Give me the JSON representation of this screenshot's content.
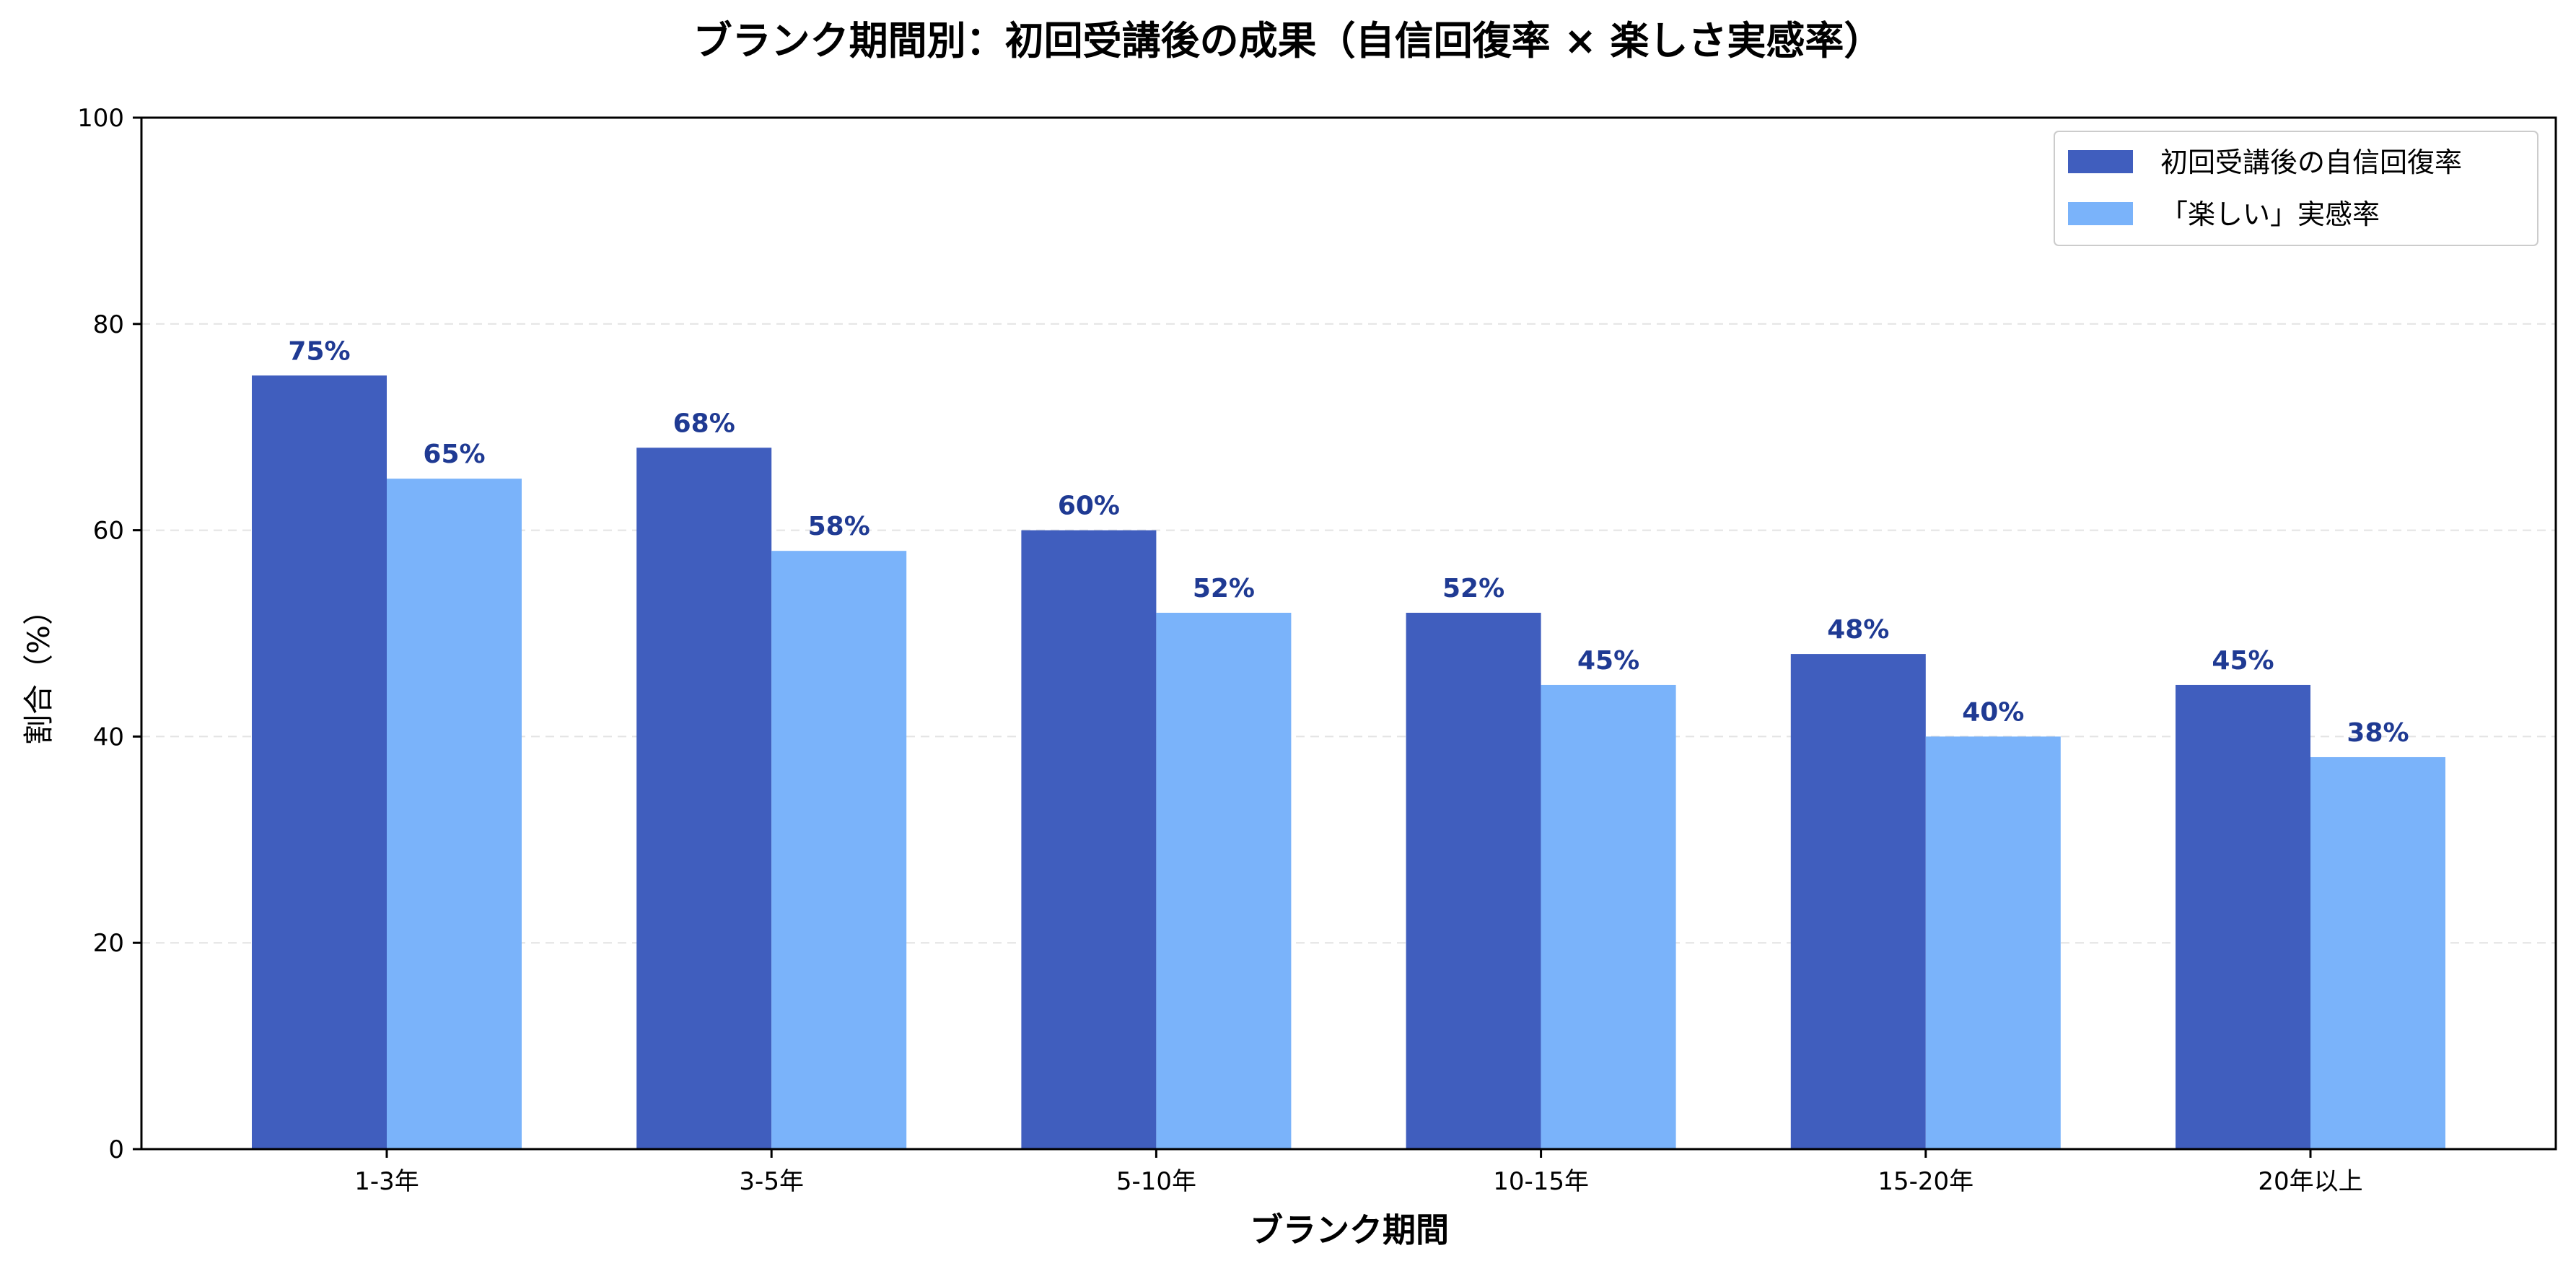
{
  "chart_data": {
    "type": "bar",
    "title": "ブランク期間別：初回受講後の成果（自信回復率 × 楽しさ実感率）",
    "xlabel": "ブランク期間",
    "ylabel": "割合（%）",
    "categories": [
      "1-3年",
      "3-5年",
      "5-10年",
      "10-15年",
      "15-20年",
      "20年以上"
    ],
    "series": [
      {
        "name": "初回受講後の自信回復率",
        "values": [
          75,
          68,
          60,
          52,
          48,
          45
        ],
        "color": "#405ebe"
      },
      {
        "name": "「楽しい」実感率",
        "values": [
          65,
          58,
          52,
          45,
          40,
          38
        ],
        "color": "#7ab3fa"
      }
    ],
    "data_labels": [
      [
        "75%",
        "68%",
        "60%",
        "52%",
        "48%",
        "45%"
      ],
      [
        "65%",
        "58%",
        "52%",
        "45%",
        "40%",
        "38%"
      ]
    ],
    "ylim": [
      0,
      100
    ],
    "yticks": [
      0,
      20,
      40,
      60,
      80,
      100
    ],
    "grid": true,
    "legend_position": "top-right",
    "label_color": "#1f3a93"
  }
}
